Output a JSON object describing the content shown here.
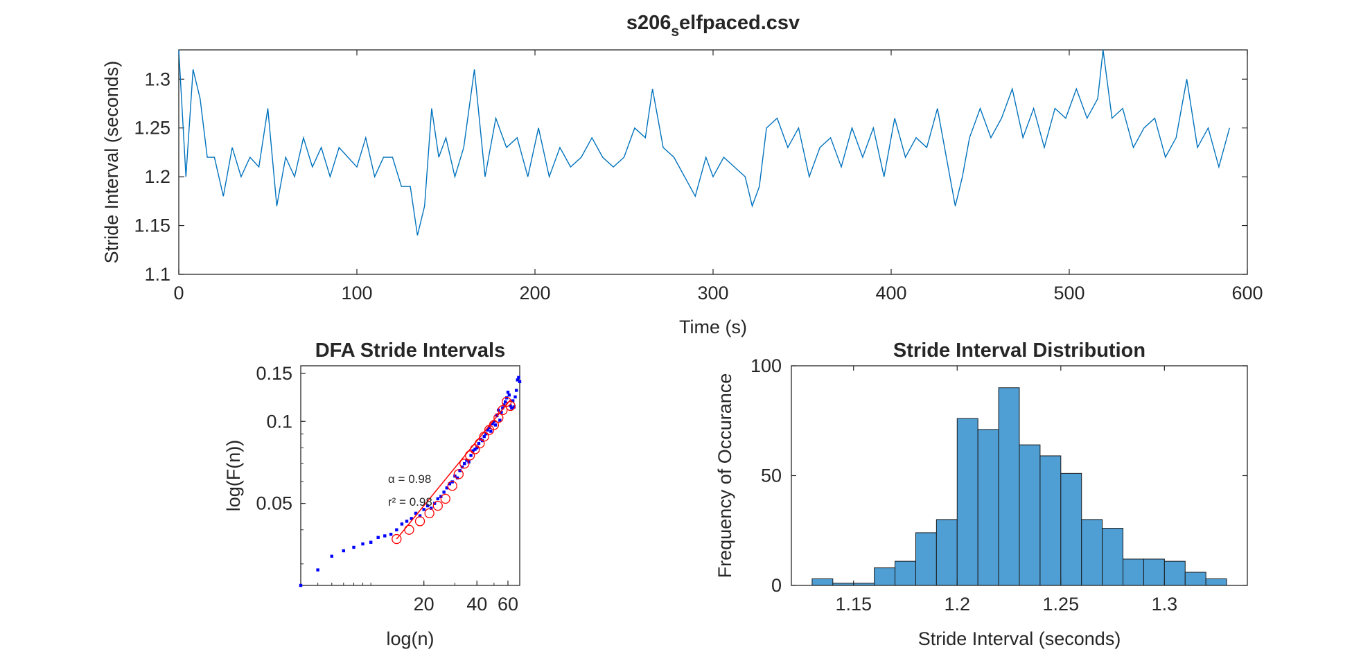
{
  "colors": {
    "trace": "#0072BD",
    "bars": "#4F9ED4",
    "bar_edge": "#1a1a1a",
    "dfa_points": "#0000FF",
    "dfa_fit": "#FF0000",
    "axes": "#262626"
  },
  "chart_data": [
    {
      "type": "line",
      "title_main": "s206",
      "title_sub": "s",
      "title_rest": "elfpaced.csv",
      "xlabel": "Time (s)",
      "ylabel": "Stride Interval (seconds)",
      "xlim": [
        0,
        600
      ],
      "ylim": [
        1.1,
        1.33
      ],
      "xticks": [
        0,
        100,
        200,
        300,
        400,
        500,
        600
      ],
      "yticks": [
        1.1,
        1.15,
        1.2,
        1.25,
        1.3
      ],
      "ytick_labels": [
        "1.1",
        "1.15",
        "1.2",
        "1.25",
        "1.3"
      ],
      "series": [
        {
          "x": [
            0,
            4,
            8,
            12,
            16,
            20,
            25,
            30,
            35,
            40,
            45,
            50,
            55,
            60,
            65,
            70,
            75,
            80,
            85,
            90,
            95,
            100,
            105,
            110,
            115,
            120,
            125,
            130,
            134,
            138,
            142,
            146,
            150,
            155,
            160,
            166,
            172,
            178,
            184,
            190,
            196,
            202,
            208,
            214,
            220,
            226,
            232,
            238,
            244,
            250,
            256,
            262,
            266,
            272,
            278,
            284,
            290,
            296,
            300,
            306,
            312,
            318,
            322,
            326,
            330,
            336,
            342,
            348,
            354,
            360,
            366,
            372,
            378,
            384,
            390,
            396,
            402,
            408,
            414,
            420,
            426,
            432,
            436,
            440,
            444,
            450,
            456,
            462,
            468,
            474,
            480,
            486,
            492,
            498,
            504,
            510,
            516,
            519,
            524,
            530,
            536,
            542,
            548,
            554,
            560,
            566,
            572,
            578,
            584,
            590
          ],
          "y": [
            1.33,
            1.2,
            1.31,
            1.28,
            1.22,
            1.22,
            1.18,
            1.23,
            1.2,
            1.22,
            1.21,
            1.27,
            1.17,
            1.22,
            1.2,
            1.24,
            1.21,
            1.23,
            1.2,
            1.23,
            1.22,
            1.21,
            1.24,
            1.2,
            1.22,
            1.22,
            1.19,
            1.19,
            1.14,
            1.17,
            1.27,
            1.22,
            1.24,
            1.2,
            1.23,
            1.31,
            1.2,
            1.26,
            1.23,
            1.24,
            1.2,
            1.25,
            1.2,
            1.23,
            1.21,
            1.22,
            1.24,
            1.22,
            1.21,
            1.22,
            1.25,
            1.24,
            1.29,
            1.23,
            1.22,
            1.2,
            1.18,
            1.22,
            1.2,
            1.22,
            1.21,
            1.2,
            1.17,
            1.19,
            1.25,
            1.26,
            1.23,
            1.25,
            1.2,
            1.23,
            1.24,
            1.21,
            1.25,
            1.22,
            1.25,
            1.2,
            1.26,
            1.22,
            1.24,
            1.23,
            1.27,
            1.21,
            1.17,
            1.2,
            1.24,
            1.27,
            1.24,
            1.26,
            1.29,
            1.24,
            1.27,
            1.23,
            1.27,
            1.26,
            1.29,
            1.26,
            1.28,
            1.33,
            1.26,
            1.27,
            1.23,
            1.25,
            1.26,
            1.22,
            1.24,
            1.3,
            1.23,
            1.25,
            1.21,
            1.25
          ]
        }
      ]
    },
    {
      "type": "scatter",
      "title": "DFA Stride Intervals",
      "xlabel": "log(n)",
      "ylabel": "log(F(n))",
      "xscale": "log",
      "yscale": "log",
      "xlim": [
        4,
        70
      ],
      "ylim": [
        0.025,
        0.16
      ],
      "xticks": [
        20,
        40,
        60
      ],
      "yticks": [
        0.05,
        0.1,
        0.15
      ],
      "ytick_labels": [
        "0.05",
        "0.1",
        "0.15"
      ],
      "annotations": [
        "α = 0.98",
        "r² = 0.98"
      ],
      "points": {
        "x": [
          4,
          5,
          6,
          7,
          8,
          9,
          10,
          11,
          12,
          13,
          14,
          15,
          16,
          17,
          18,
          19,
          20,
          21,
          22,
          23,
          24,
          25,
          26,
          27,
          28,
          29,
          30,
          31,
          32,
          33,
          34,
          35,
          36,
          37,
          38,
          39,
          40,
          41,
          42,
          43,
          44,
          45,
          46,
          47,
          48,
          49,
          50,
          51,
          52,
          53,
          54,
          55,
          56,
          57,
          58,
          59,
          60,
          61,
          62,
          63,
          64,
          65,
          66,
          67,
          68,
          69,
          70
        ],
        "y": [
          0.025,
          0.0285,
          0.032,
          0.0335,
          0.0345,
          0.0355,
          0.036,
          0.0375,
          0.038,
          0.0385,
          0.04,
          0.042,
          0.043,
          0.044,
          0.046,
          0.045,
          0.0475,
          0.049,
          0.048,
          0.05,
          0.052,
          0.053,
          0.055,
          0.057,
          0.059,
          0.06,
          0.063,
          0.062,
          0.066,
          0.068,
          0.07,
          0.072,
          0.071,
          0.075,
          0.078,
          0.079,
          0.08,
          0.083,
          0.086,
          0.085,
          0.088,
          0.09,
          0.093,
          0.095,
          0.092,
          0.098,
          0.1,
          0.097,
          0.105,
          0.11,
          0.101,
          0.108,
          0.112,
          0.115,
          0.118,
          0.122,
          0.128,
          0.125,
          0.114,
          0.112,
          0.119,
          0.113,
          0.123,
          0.13,
          0.142,
          0.145,
          0.14
        ]
      },
      "binned": {
        "x": [
          14,
          16.5,
          19,
          21.5,
          24,
          26.5,
          29,
          31.5,
          34,
          36.5,
          39,
          41.5,
          44,
          47,
          50,
          53,
          56,
          59,
          62
        ],
        "y": [
          0.037,
          0.04,
          0.043,
          0.046,
          0.049,
          0.052,
          0.058,
          0.064,
          0.07,
          0.075,
          0.079,
          0.083,
          0.088,
          0.093,
          0.097,
          0.103,
          0.11,
          0.118,
          0.114
        ]
      },
      "fit": {
        "x": [
          14,
          62
        ],
        "y": [
          0.037,
          0.12
        ]
      }
    },
    {
      "type": "bar",
      "title": "Stride Interval Distribution",
      "xlabel": "Stride Interval (seconds)",
      "ylabel": "Frequency of Occurance",
      "xlim": [
        1.12,
        1.34
      ],
      "ylim": [
        0,
        100
      ],
      "xticks": [
        1.15,
        1.2,
        1.25,
        1.3
      ],
      "yticks": [
        0,
        50,
        100
      ],
      "bin_edges": [
        1.13,
        1.14,
        1.15,
        1.16,
        1.17,
        1.18,
        1.19,
        1.2,
        1.21,
        1.22,
        1.23,
        1.24,
        1.25,
        1.26,
        1.27,
        1.28,
        1.29,
        1.3,
        1.31,
        1.32,
        1.33
      ],
      "values": [
        3,
        1,
        1,
        8,
        11,
        24,
        30,
        76,
        71,
        90,
        64,
        59,
        51,
        30,
        26,
        12,
        12,
        11,
        6,
        3
      ]
    }
  ]
}
